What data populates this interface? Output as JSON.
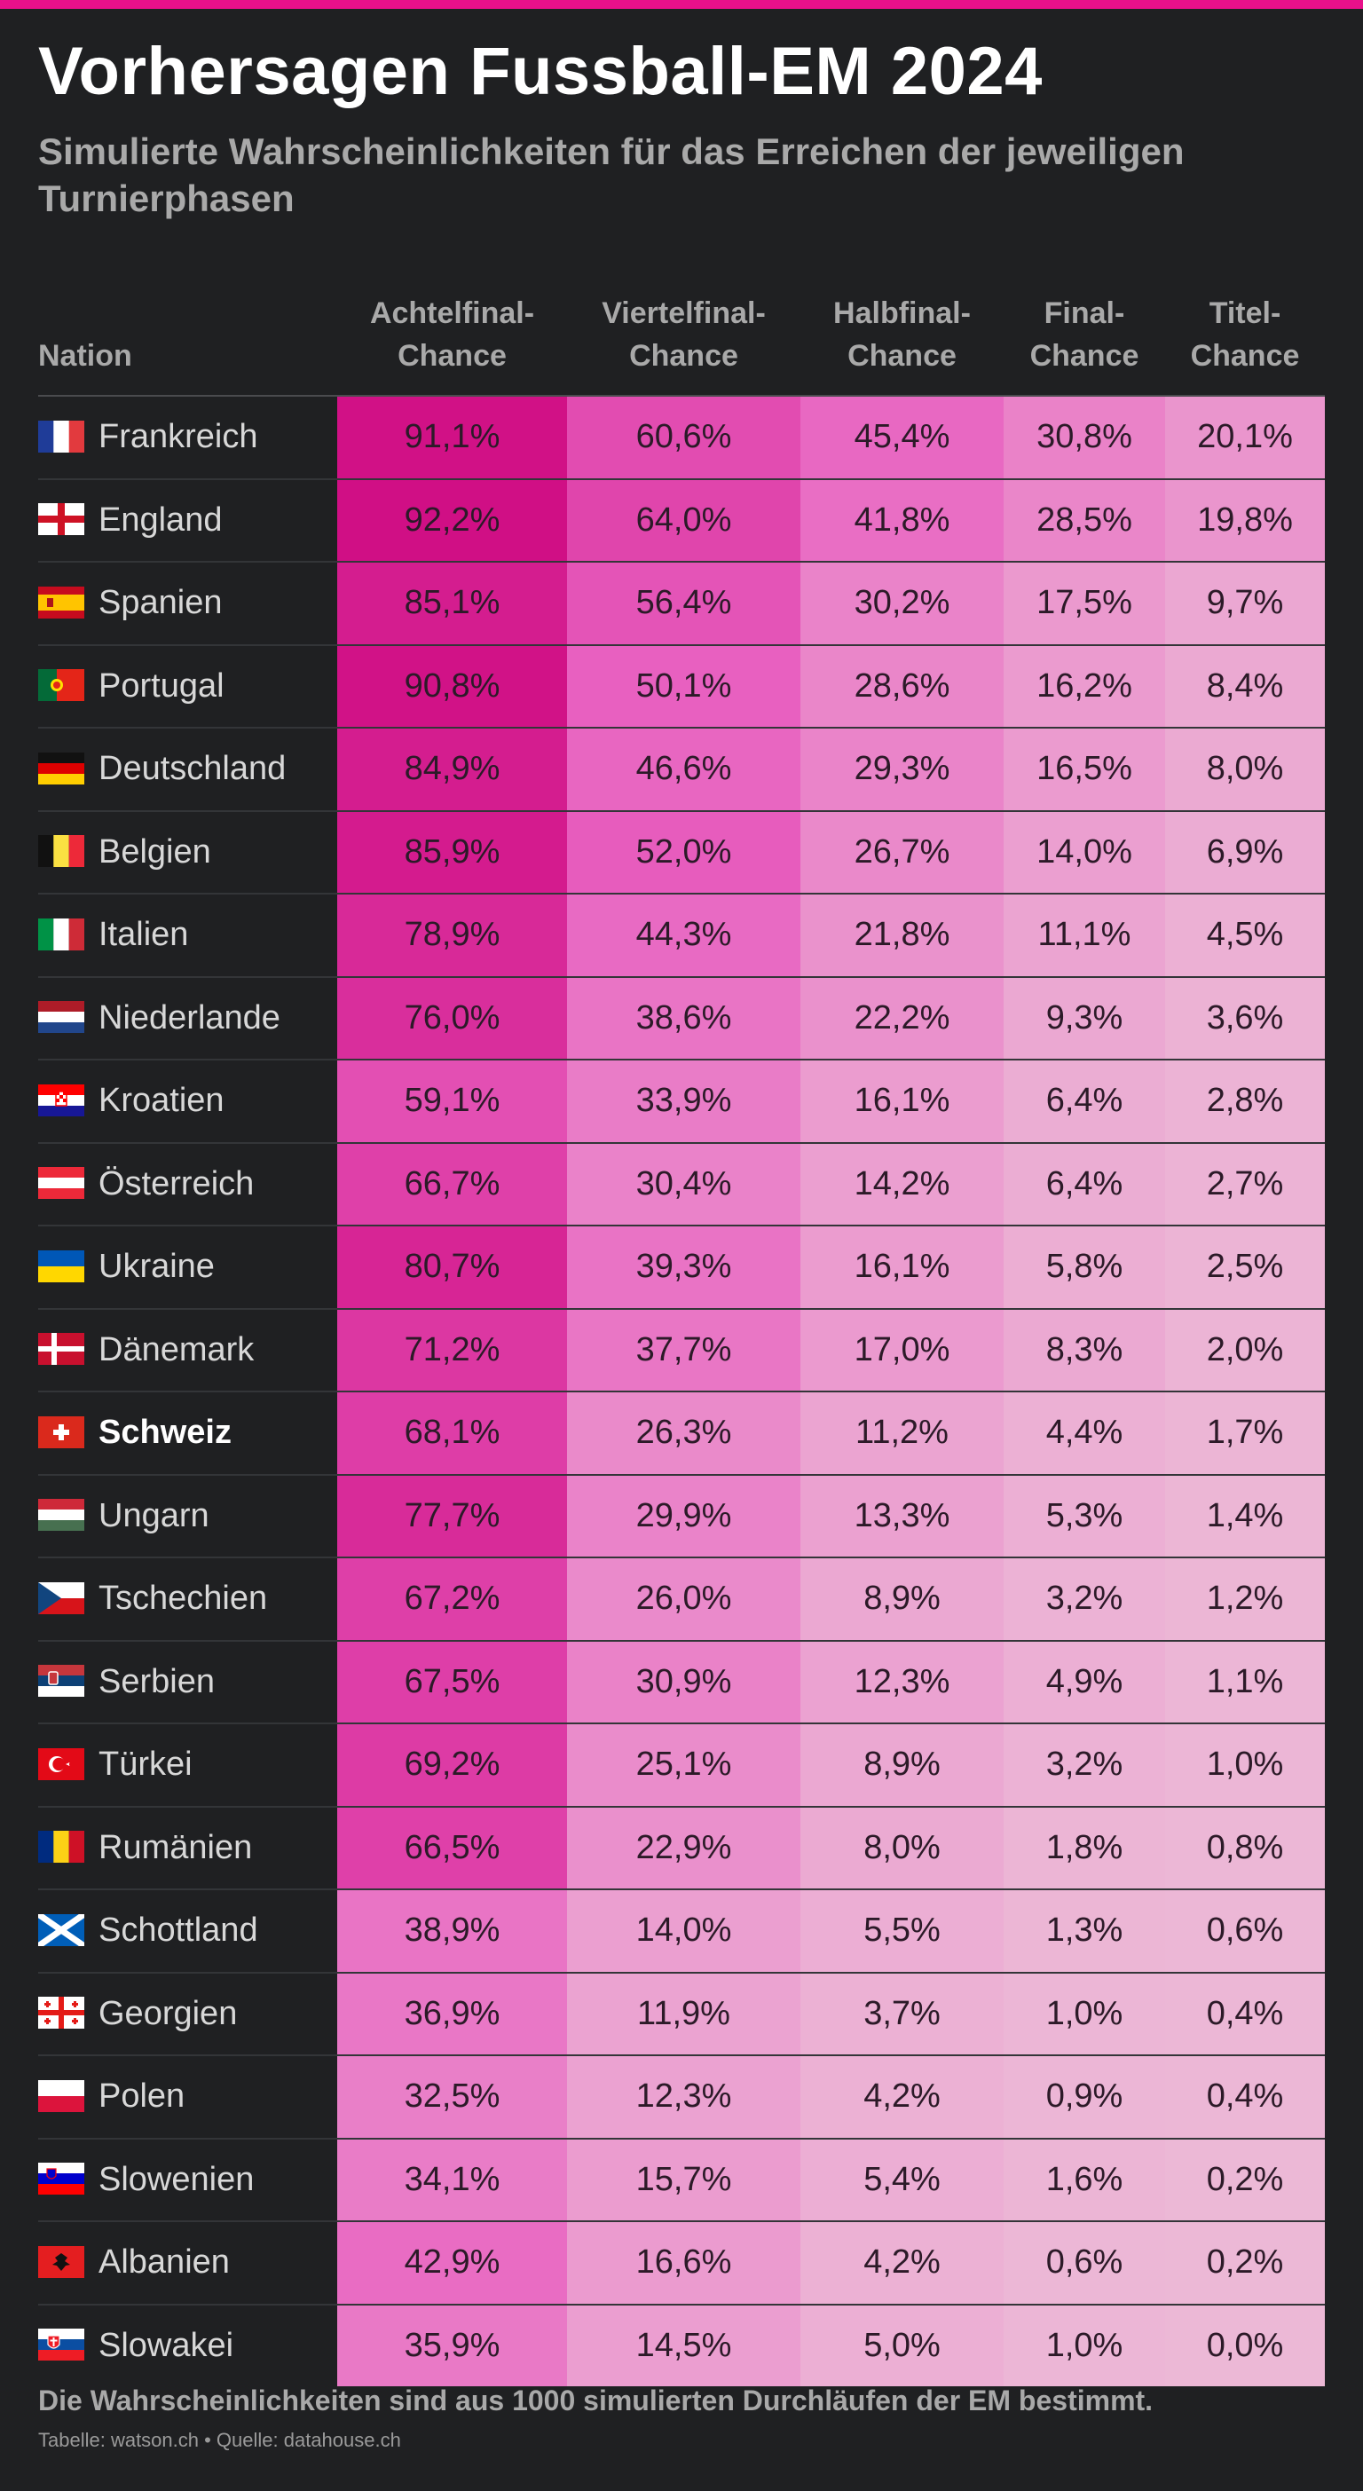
{
  "title": "Vorhersagen Fussball-EM 2024",
  "subtitle": "Simulierte Wahrscheinlichkeiten für das Erreichen der jeweiligen Turnierphasen",
  "footer_note": "Die Wahrscheinlichkeiten sind aus 1000 simulierten Durchläufen der EM bestimmt.",
  "source": "Tabelle: watson.ch • Quelle: datahouse.ch",
  "colors": {
    "background": "#1f2022",
    "accent": "#e8108a",
    "heat_low": "#ecb8d6",
    "heat_high": "#cc007a",
    "highlight_text": "#ffffff"
  },
  "chart_data": {
    "type": "table",
    "columns": [
      {
        "key": "nation",
        "label": "Nation"
      },
      {
        "key": "r16",
        "label": "Achtelfinal-\nChance"
      },
      {
        "key": "qf",
        "label": "Viertelfinal-\nChance"
      },
      {
        "key": "sf",
        "label": "Halbfinal-\nChance"
      },
      {
        "key": "final",
        "label": "Final-\nChance"
      },
      {
        "key": "title",
        "label": "Titel-\nChance"
      }
    ],
    "rows": [
      {
        "nation": "Frankreich",
        "flag": "france-flag-icon",
        "values": [
          "91,1%",
          "60,6%",
          "45,4%",
          "30,8%",
          "20,1%"
        ]
      },
      {
        "nation": "England",
        "flag": "england-flag-icon",
        "values": [
          "92,2%",
          "64,0%",
          "41,8%",
          "28,5%",
          "19,8%"
        ]
      },
      {
        "nation": "Spanien",
        "flag": "spain-flag-icon",
        "values": [
          "85,1%",
          "56,4%",
          "30,2%",
          "17,5%",
          "9,7%"
        ]
      },
      {
        "nation": "Portugal",
        "flag": "portugal-flag-icon",
        "values": [
          "90,8%",
          "50,1%",
          "28,6%",
          "16,2%",
          "8,4%"
        ]
      },
      {
        "nation": "Deutschland",
        "flag": "germany-flag-icon",
        "values": [
          "84,9%",
          "46,6%",
          "29,3%",
          "16,5%",
          "8,0%"
        ]
      },
      {
        "nation": "Belgien",
        "flag": "belgium-flag-icon",
        "values": [
          "85,9%",
          "52,0%",
          "26,7%",
          "14,0%",
          "6,9%"
        ]
      },
      {
        "nation": "Italien",
        "flag": "italy-flag-icon",
        "values": [
          "78,9%",
          "44,3%",
          "21,8%",
          "11,1%",
          "4,5%"
        ]
      },
      {
        "nation": "Niederlande",
        "flag": "netherlands-flag-icon",
        "values": [
          "76,0%",
          "38,6%",
          "22,2%",
          "9,3%",
          "3,6%"
        ]
      },
      {
        "nation": "Kroatien",
        "flag": "croatia-flag-icon",
        "values": [
          "59,1%",
          "33,9%",
          "16,1%",
          "6,4%",
          "2,8%"
        ]
      },
      {
        "nation": "Österreich",
        "flag": "austria-flag-icon",
        "values": [
          "66,7%",
          "30,4%",
          "14,2%",
          "6,4%",
          "2,7%"
        ]
      },
      {
        "nation": "Ukraine",
        "flag": "ukraine-flag-icon",
        "values": [
          "80,7%",
          "39,3%",
          "16,1%",
          "5,8%",
          "2,5%"
        ]
      },
      {
        "nation": "Dänemark",
        "flag": "denmark-flag-icon",
        "values": [
          "71,2%",
          "37,7%",
          "17,0%",
          "8,3%",
          "2,0%"
        ]
      },
      {
        "nation": "Schweiz",
        "flag": "switzerland-flag-icon",
        "highlight": true,
        "values": [
          "68,1%",
          "26,3%",
          "11,2%",
          "4,4%",
          "1,7%"
        ]
      },
      {
        "nation": "Ungarn",
        "flag": "hungary-flag-icon",
        "values": [
          "77,7%",
          "29,9%",
          "13,3%",
          "5,3%",
          "1,4%"
        ]
      },
      {
        "nation": "Tschechien",
        "flag": "czechia-flag-icon",
        "values": [
          "67,2%",
          "26,0%",
          "8,9%",
          "3,2%",
          "1,2%"
        ]
      },
      {
        "nation": "Serbien",
        "flag": "serbia-flag-icon",
        "values": [
          "67,5%",
          "30,9%",
          "12,3%",
          "4,9%",
          "1,1%"
        ]
      },
      {
        "nation": "Türkei",
        "flag": "turkey-flag-icon",
        "values": [
          "69,2%",
          "25,1%",
          "8,9%",
          "3,2%",
          "1,0%"
        ]
      },
      {
        "nation": "Rumänien",
        "flag": "romania-flag-icon",
        "values": [
          "66,5%",
          "22,9%",
          "8,0%",
          "1,8%",
          "0,8%"
        ]
      },
      {
        "nation": "Schottland",
        "flag": "scotland-flag-icon",
        "values": [
          "38,9%",
          "14,0%",
          "5,5%",
          "1,3%",
          "0,6%"
        ]
      },
      {
        "nation": "Georgien",
        "flag": "georgia-flag-icon",
        "values": [
          "36,9%",
          "11,9%",
          "3,7%",
          "1,0%",
          "0,4%"
        ]
      },
      {
        "nation": "Polen",
        "flag": "poland-flag-icon",
        "values": [
          "32,5%",
          "12,3%",
          "4,2%",
          "0,9%",
          "0,4%"
        ]
      },
      {
        "nation": "Slowenien",
        "flag": "slovenia-flag-icon",
        "values": [
          "34,1%",
          "15,7%",
          "5,4%",
          "1,6%",
          "0,2%"
        ]
      },
      {
        "nation": "Albanien",
        "flag": "albania-flag-icon",
        "values": [
          "42,9%",
          "16,6%",
          "4,2%",
          "0,6%",
          "0,2%"
        ]
      },
      {
        "nation": "Slowakei",
        "flag": "slovakia-flag-icon",
        "values": [
          "35,9%",
          "14,5%",
          "5,0%",
          "1,0%",
          "0,0%"
        ]
      }
    ]
  }
}
